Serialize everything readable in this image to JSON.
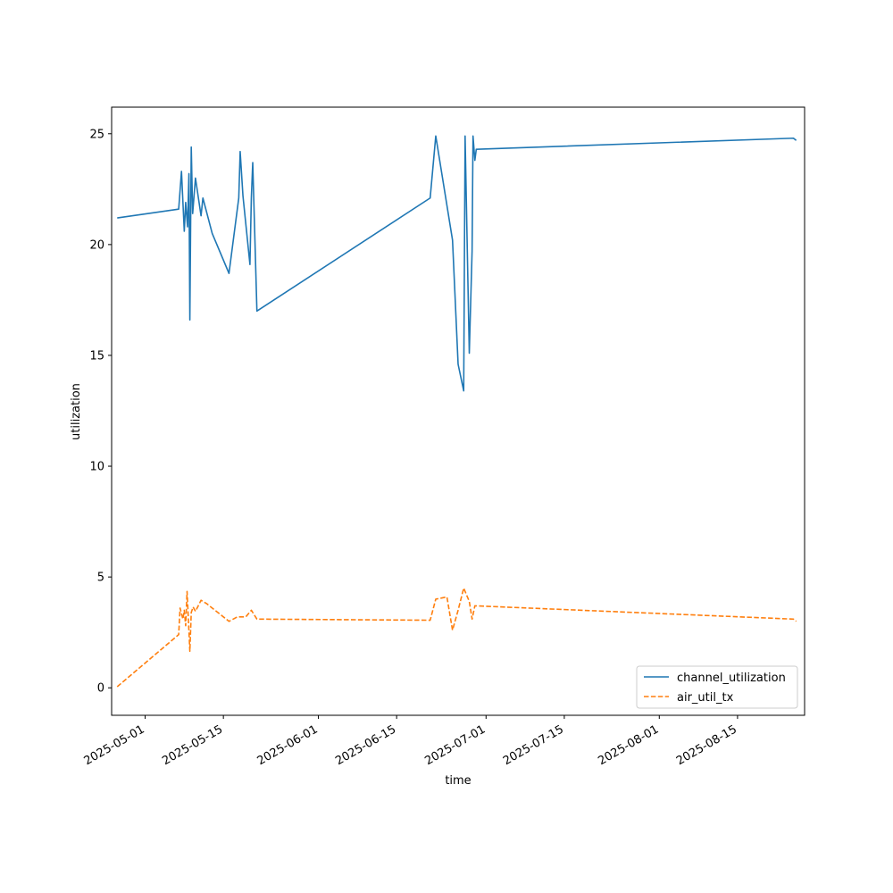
{
  "chart_data": {
    "type": "line",
    "xlabel": "time",
    "ylabel": "utilization",
    "x_range": [
      "2025-04-25",
      "2025-08-27"
    ],
    "ylim": [
      -1.24,
      26.2
    ],
    "x_ticks": [
      "2025-05-01",
      "2025-05-15",
      "2025-06-01",
      "2025-06-15",
      "2025-07-01",
      "2025-07-15",
      "2025-08-01",
      "2025-08-15"
    ],
    "y_ticks": [
      0,
      5,
      10,
      15,
      20,
      25
    ],
    "grid": false,
    "legend_position": "lower-right",
    "series": [
      {
        "name": "channel_utilization",
        "color": "#1f77b4",
        "dash": "solid",
        "points": [
          [
            "2025-04-26",
            21.2
          ],
          [
            "2025-05-07",
            21.6
          ],
          [
            "2025-05-07T12",
            23.3
          ],
          [
            "2025-05-08",
            20.6
          ],
          [
            "2025-05-08T06",
            21.9
          ],
          [
            "2025-05-08T14",
            20.8
          ],
          [
            "2025-05-08T20",
            23.2
          ],
          [
            "2025-05-09",
            16.6
          ],
          [
            "2025-05-09T06",
            24.4
          ],
          [
            "2025-05-09T12",
            21.4
          ],
          [
            "2025-05-10",
            23.0
          ],
          [
            "2025-05-11",
            21.3
          ],
          [
            "2025-05-11T08",
            22.1
          ],
          [
            "2025-05-13",
            20.5
          ],
          [
            "2025-05-16",
            18.7
          ],
          [
            "2025-05-17T18",
            22.1
          ],
          [
            "2025-05-18",
            24.2
          ],
          [
            "2025-05-18T12",
            22.2
          ],
          [
            "2025-05-19T18",
            19.1
          ],
          [
            "2025-05-20",
            22.1
          ],
          [
            "2025-05-20T06",
            23.7
          ],
          [
            "2025-05-21",
            17.0
          ],
          [
            "2025-06-21",
            22.1
          ],
          [
            "2025-06-22",
            24.9
          ],
          [
            "2025-06-25",
            20.2
          ],
          [
            "2025-06-26",
            14.6
          ],
          [
            "2025-06-27",
            13.4
          ],
          [
            "2025-06-27T06",
            24.9
          ],
          [
            "2025-06-28",
            15.1
          ],
          [
            "2025-06-28T12",
            19.7
          ],
          [
            "2025-06-28T16",
            24.9
          ],
          [
            "2025-06-29",
            23.8
          ],
          [
            "2025-06-29T06",
            24.3
          ],
          [
            "2025-08-25",
            24.8
          ],
          [
            "2025-08-25T12",
            24.7
          ]
        ]
      },
      {
        "name": "air_util_tx",
        "color": "#ff7f0e",
        "dash": "dashed",
        "points": [
          [
            "2025-04-26",
            0.05
          ],
          [
            "2025-05-07",
            2.4
          ],
          [
            "2025-05-07T06",
            3.6
          ],
          [
            "2025-05-07T18",
            3.1
          ],
          [
            "2025-05-08",
            3.5
          ],
          [
            "2025-05-08T06",
            2.8
          ],
          [
            "2025-05-08T12",
            4.35
          ],
          [
            "2025-05-08T18",
            3.0
          ],
          [
            "2025-05-09",
            1.65
          ],
          [
            "2025-05-09T06",
            3.4
          ],
          [
            "2025-05-09T14",
            3.65
          ],
          [
            "2025-05-10",
            3.45
          ],
          [
            "2025-05-11",
            3.95
          ],
          [
            "2025-05-12",
            3.8
          ],
          [
            "2025-05-16",
            3.0
          ],
          [
            "2025-05-17T12",
            3.2
          ],
          [
            "2025-05-19",
            3.2
          ],
          [
            "2025-05-20",
            3.5
          ],
          [
            "2025-05-21",
            3.1
          ],
          [
            "2025-06-21",
            3.05
          ],
          [
            "2025-06-22",
            4.0
          ],
          [
            "2025-06-24",
            4.1
          ],
          [
            "2025-06-25",
            2.6
          ],
          [
            "2025-06-26",
            3.5
          ],
          [
            "2025-06-27",
            4.5
          ],
          [
            "2025-06-28",
            3.9
          ],
          [
            "2025-06-28T12",
            3.1
          ],
          [
            "2025-06-29",
            3.7
          ],
          [
            "2025-08-25",
            3.1
          ],
          [
            "2025-08-25T12",
            3.0
          ]
        ]
      }
    ]
  }
}
